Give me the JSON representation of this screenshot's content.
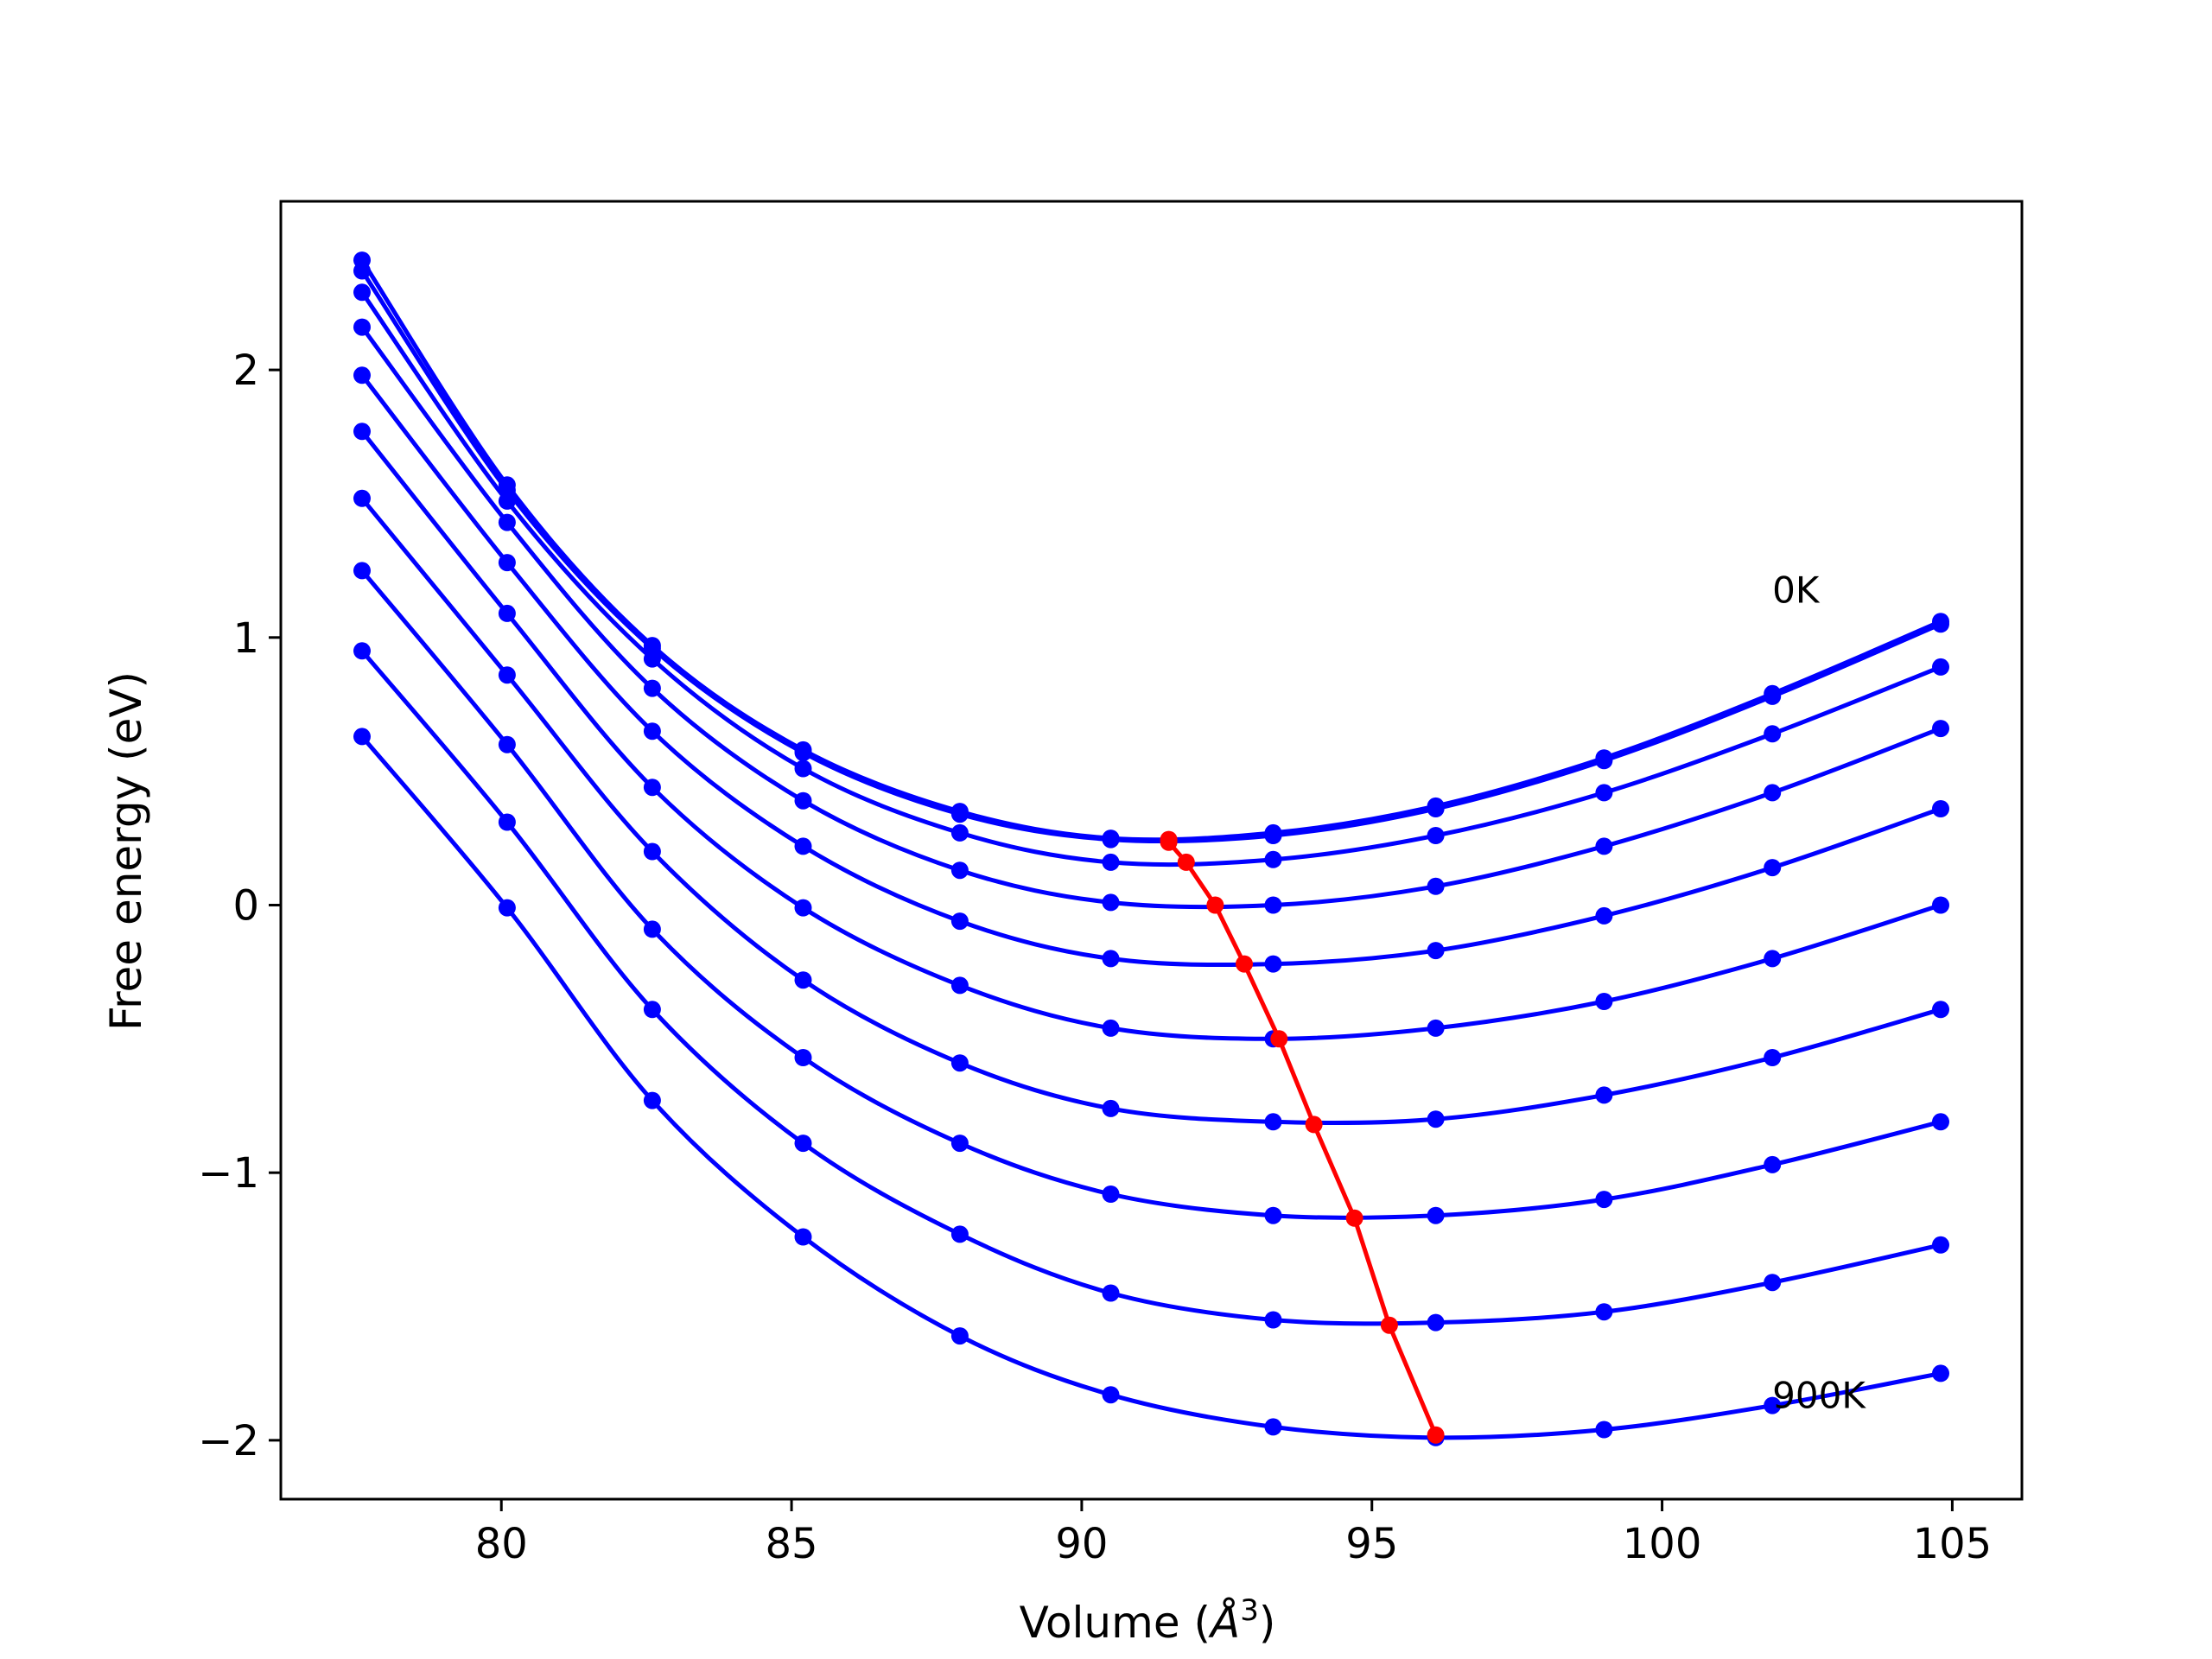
{
  "chart_data": {
    "type": "line",
    "title": "",
    "xlabel_main": "Volume (",
    "xlabel_unit": "Å",
    "xlabel_exp": "3",
    "xlabel_close": ")",
    "ylabel": "Free energy (eV)",
    "xlim": [
      76.2,
      106.2
    ],
    "ylim": [
      -2.22,
      2.63
    ],
    "x_ticks": [
      80,
      85,
      90,
      95,
      100,
      105
    ],
    "y_ticks": [
      -2,
      -1,
      0,
      1,
      2
    ],
    "y_tick_labels": [
      "−2",
      "−1",
      "0",
      "1",
      "2"
    ],
    "grid": false,
    "annotations": [
      {
        "text": "0K",
        "x": 101.9,
        "y": 1.13
      },
      {
        "text": "900K",
        "x": 101.9,
        "y": -1.88
      }
    ],
    "colors": {
      "curves": "#0000ff",
      "minima": "#ff0000"
    },
    "x": [
      77.6,
      80.1,
      82.6,
      85.2,
      87.9,
      90.5,
      93.3,
      96.1,
      99.0,
      101.9,
      104.8
    ],
    "series": [
      {
        "values": [
          2.41,
          1.57,
          0.97,
          0.58,
          0.35,
          0.25,
          0.27,
          0.37,
          0.55,
          0.79,
          1.06
        ]
      },
      {
        "values": [
          2.37,
          1.55,
          0.96,
          0.57,
          0.34,
          0.245,
          0.26,
          0.36,
          0.54,
          0.78,
          1.05
        ]
      },
      {
        "values": [
          2.29,
          1.51,
          0.92,
          0.51,
          0.27,
          0.16,
          0.17,
          0.26,
          0.42,
          0.64,
          0.89
        ]
      },
      {
        "values": [
          2.16,
          1.43,
          0.81,
          0.39,
          0.13,
          0.01,
          0.0,
          0.07,
          0.22,
          0.42,
          0.66
        ]
      },
      {
        "values": [
          1.98,
          1.28,
          0.65,
          0.22,
          -0.06,
          -0.2,
          -0.22,
          -0.17,
          -0.04,
          0.14,
          0.36
        ]
      },
      {
        "values": [
          1.77,
          1.09,
          0.44,
          -0.01,
          -0.3,
          -0.46,
          -0.5,
          -0.46,
          -0.36,
          -0.2,
          0.0
        ]
      },
      {
        "values": [
          1.52,
          0.86,
          0.2,
          -0.28,
          -0.59,
          -0.76,
          -0.81,
          -0.8,
          -0.71,
          -0.57,
          -0.39
        ]
      },
      {
        "values": [
          1.25,
          0.6,
          -0.09,
          -0.57,
          -0.89,
          -1.08,
          -1.16,
          -1.16,
          -1.1,
          -0.97,
          -0.81
        ]
      },
      {
        "values": [
          0.95,
          0.31,
          -0.39,
          -0.89,
          -1.23,
          -1.45,
          -1.55,
          -1.56,
          -1.52,
          -1.41,
          -1.27
        ]
      },
      {
        "values": [
          0.63,
          -0.01,
          -0.73,
          -1.24,
          -1.61,
          -1.83,
          -1.95,
          -1.99,
          -1.96,
          -1.87,
          -1.75
        ]
      }
    ],
    "minima": {
      "x": [
        91.5,
        91.5,
        91.8,
        92.3,
        92.8,
        93.4,
        94.0,
        94.7,
        95.3,
        96.1
      ],
      "y": [
        0.245,
        0.235,
        0.16,
        0.0,
        -0.22,
        -0.5,
        -0.82,
        -1.17,
        -1.57,
        -1.98
      ]
    }
  }
}
